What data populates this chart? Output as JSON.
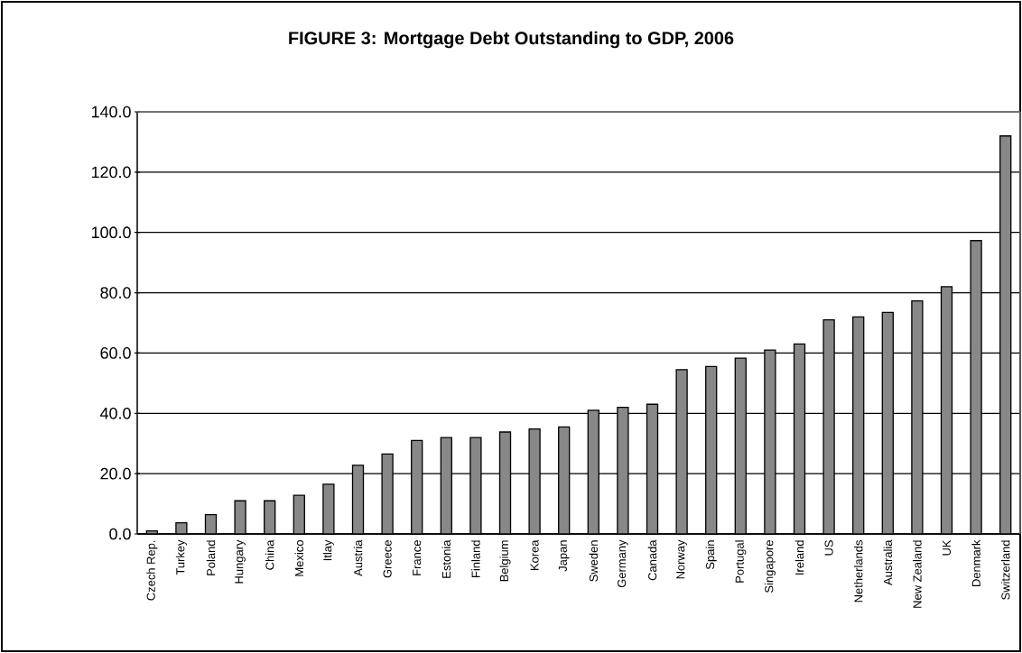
{
  "chart_data": {
    "type": "bar",
    "title": "FIGURE 3: Mortgage Debt Outstanding to GDP, 2006",
    "categories": [
      "Czech Rep.",
      "Turkey",
      "Poland",
      "Hungary",
      "China",
      "Mexico",
      "Itlay",
      "Austria",
      "Greece",
      "France",
      "Estonia",
      "Finland",
      "Belgium",
      "Korea",
      "Japan",
      "Sweden",
      "Germany",
      "Canada",
      "Norway",
      "Spain",
      "Portugal",
      "Singapore",
      "Ireland",
      "US",
      "Netherlands",
      "Australia",
      "New Zealand",
      "UK",
      "Denmark",
      "Switzerland"
    ],
    "values": [
      1.0,
      3.7,
      6.4,
      11.0,
      11.0,
      12.8,
      16.5,
      22.8,
      26.5,
      31.0,
      32.0,
      32.0,
      33.8,
      34.8,
      35.5,
      41.0,
      42.0,
      43.0,
      54.5,
      55.5,
      58.3,
      61.0,
      63.0,
      71.0,
      72.0,
      73.5,
      77.3,
      82.0,
      97.3,
      132.0
    ],
    "color": "#888888",
    "ylim": [
      0,
      140
    ],
    "yticks": [
      {
        "value": 0,
        "label": "0.0"
      },
      {
        "value": 20,
        "label": "20.0"
      },
      {
        "value": 40,
        "label": "40.0"
      },
      {
        "value": 60,
        "label": "60.0"
      },
      {
        "value": 80,
        "label": "80.0"
      },
      {
        "value": 100,
        "label": "100.0"
      },
      {
        "value": 120,
        "label": "120.0"
      },
      {
        "value": 140,
        "label": "140.0"
      }
    ],
    "grid": "y"
  }
}
